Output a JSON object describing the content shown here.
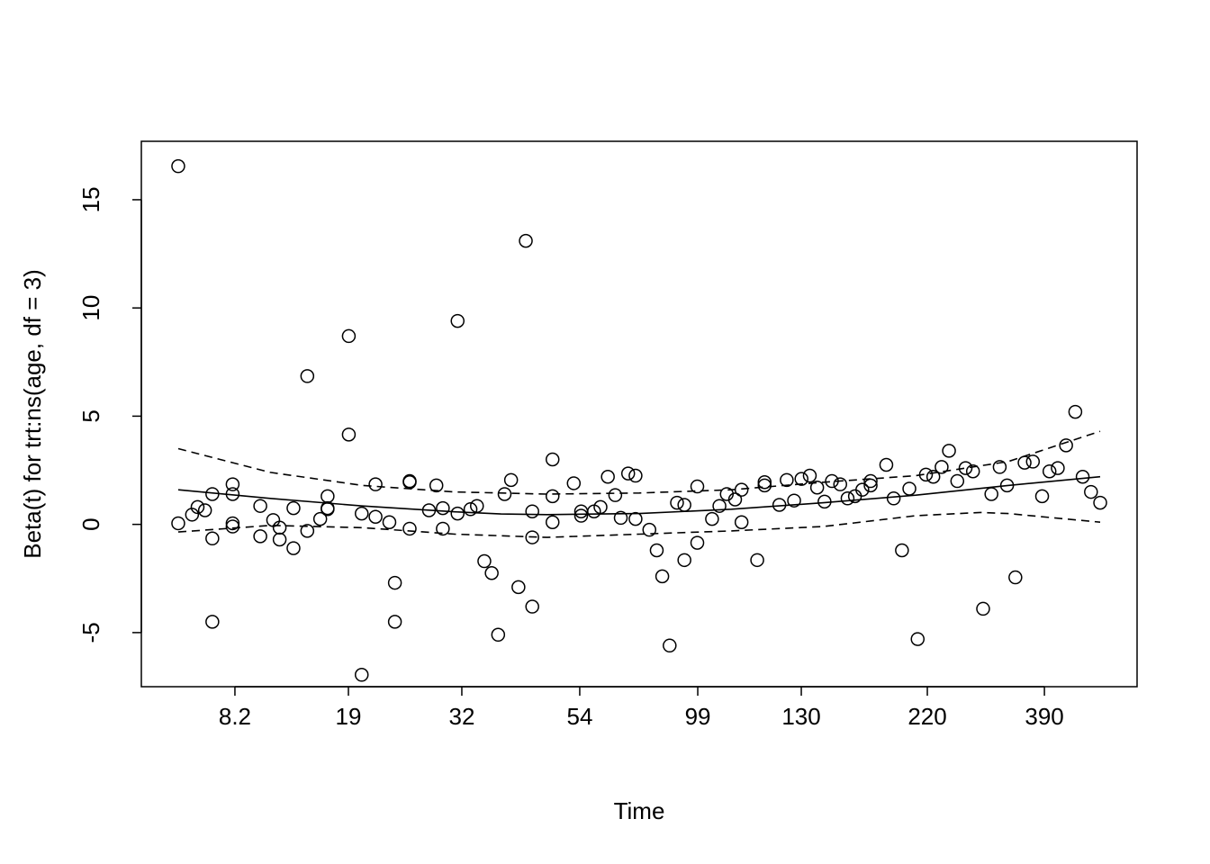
{
  "chart_data": {
    "type": "scatter",
    "title": "",
    "xlabel": "Time",
    "ylabel": "Beta(t) for trt:ns(age, df = 3)",
    "x_scale_note": "transformed time (KM scale)",
    "xlim": [
      -0.04,
      1.04
    ],
    "ylim": [
      -7.5,
      17.7
    ],
    "x_ticks": [
      {
        "pos": 0.0615,
        "label": "8.2"
      },
      {
        "pos": 0.1846,
        "label": "19"
      },
      {
        "pos": 0.3076,
        "label": "32"
      },
      {
        "pos": 0.4355,
        "label": "54"
      },
      {
        "pos": 0.5635,
        "label": "99"
      },
      {
        "pos": 0.6758,
        "label": "130"
      },
      {
        "pos": 0.8125,
        "label": "220"
      },
      {
        "pos": 0.9395,
        "label": "390"
      }
    ],
    "y_ticks": [
      {
        "pos": -5,
        "label": "-5"
      },
      {
        "pos": 0,
        "label": "0"
      },
      {
        "pos": 5,
        "label": "5"
      },
      {
        "pos": 10,
        "label": "10"
      },
      {
        "pos": 15,
        "label": "15"
      }
    ],
    "points": [
      [
        0,
        16.55
      ],
      [
        0,
        0.05
      ],
      [
        0.015,
        0.45
      ],
      [
        0.021,
        0.8
      ],
      [
        0.029,
        0.65
      ],
      [
        0.037,
        1.4
      ],
      [
        0.037,
        -0.65
      ],
      [
        0.037,
        -4.5
      ],
      [
        0.059,
        1.85
      ],
      [
        0.059,
        1.4
      ],
      [
        0.059,
        0.05
      ],
      [
        0.059,
        -0.1
      ],
      [
        0.089,
        0.85
      ],
      [
        0.089,
        -0.55
      ],
      [
        0.103,
        0.2
      ],
      [
        0.11,
        -0.15
      ],
      [
        0.11,
        -0.7
      ],
      [
        0.125,
        0.75
      ],
      [
        0.125,
        -1.1
      ],
      [
        0.14,
        6.85
      ],
      [
        0.14,
        -0.3
      ],
      [
        0.154,
        0.25
      ],
      [
        0.162,
        1.3
      ],
      [
        0.162,
        0.75
      ],
      [
        0.162,
        0.7
      ],
      [
        0.185,
        8.7
      ],
      [
        0.185,
        4.15
      ],
      [
        0.199,
        0.5
      ],
      [
        0.199,
        -6.95
      ],
      [
        0.214,
        1.85
      ],
      [
        0.214,
        0.35
      ],
      [
        0.229,
        0.1
      ],
      [
        0.235,
        -2.7
      ],
      [
        0.235,
        -4.5
      ],
      [
        0.251,
        2.0
      ],
      [
        0.251,
        1.95
      ],
      [
        0.251,
        -0.2
      ],
      [
        0.272,
        0.65
      ],
      [
        0.28,
        1.8
      ],
      [
        0.287,
        0.75
      ],
      [
        0.287,
        -0.2
      ],
      [
        0.303,
        9.4
      ],
      [
        0.303,
        0.5
      ],
      [
        0.317,
        0.7
      ],
      [
        0.324,
        0.85
      ],
      [
        0.332,
        -1.7
      ],
      [
        0.34,
        -2.25
      ],
      [
        0.347,
        -5.1
      ],
      [
        0.354,
        1.4
      ],
      [
        0.361,
        2.05
      ],
      [
        0.369,
        -2.9
      ],
      [
        0.377,
        13.1
      ],
      [
        0.384,
        0.6
      ],
      [
        0.384,
        -0.6
      ],
      [
        0.384,
        -3.8
      ],
      [
        0.406,
        3.0
      ],
      [
        0.406,
        1.3
      ],
      [
        0.406,
        0.1
      ],
      [
        0.429,
        1.9
      ],
      [
        0.437,
        0.6
      ],
      [
        0.437,
        0.4
      ],
      [
        0.451,
        0.6
      ],
      [
        0.458,
        0.8
      ],
      [
        0.466,
        2.2
      ],
      [
        0.474,
        1.35
      ],
      [
        0.48,
        0.3
      ],
      [
        0.488,
        2.35
      ],
      [
        0.496,
        2.25
      ],
      [
        0.496,
        0.25
      ],
      [
        0.511,
        -0.25
      ],
      [
        0.519,
        -1.2
      ],
      [
        0.525,
        -2.4
      ],
      [
        0.533,
        -5.6
      ],
      [
        0.541,
        1.0
      ],
      [
        0.549,
        0.9
      ],
      [
        0.549,
        -1.65
      ],
      [
        0.563,
        1.75
      ],
      [
        0.563,
        -0.85
      ],
      [
        0.579,
        0.25
      ],
      [
        0.587,
        0.85
      ],
      [
        0.595,
        1.4
      ],
      [
        0.604,
        1.15
      ],
      [
        0.611,
        1.6
      ],
      [
        0.611,
        0.1
      ],
      [
        0.628,
        -1.65
      ],
      [
        0.636,
        1.95
      ],
      [
        0.636,
        1.8
      ],
      [
        0.652,
        0.9
      ],
      [
        0.66,
        2.05
      ],
      [
        0.668,
        1.1
      ],
      [
        0.676,
        2.1
      ],
      [
        0.685,
        2.25
      ],
      [
        0.693,
        1.7
      ],
      [
        0.701,
        1.05
      ],
      [
        0.709,
        2.0
      ],
      [
        0.718,
        1.85
      ],
      [
        0.726,
        1.2
      ],
      [
        0.734,
        1.3
      ],
      [
        0.742,
        1.6
      ],
      [
        0.751,
        2.0
      ],
      [
        0.751,
        1.8
      ],
      [
        0.768,
        2.75
      ],
      [
        0.776,
        1.2
      ],
      [
        0.785,
        -1.2
      ],
      [
        0.793,
        1.65
      ],
      [
        0.802,
        -5.3
      ],
      [
        0.811,
        2.3
      ],
      [
        0.819,
        2.2
      ],
      [
        0.828,
        2.65
      ],
      [
        0.836,
        3.4
      ],
      [
        0.845,
        2.0
      ],
      [
        0.854,
        2.6
      ],
      [
        0.862,
        2.45
      ],
      [
        0.873,
        -3.9
      ],
      [
        0.882,
        1.4
      ],
      [
        0.891,
        2.65
      ],
      [
        0.899,
        1.8
      ],
      [
        0.908,
        -2.45
      ],
      [
        0.918,
        2.85
      ],
      [
        0.927,
        2.9
      ],
      [
        0.937,
        1.3
      ],
      [
        0.945,
        2.45
      ],
      [
        0.954,
        2.6
      ],
      [
        0.963,
        3.65
      ],
      [
        0.973,
        5.2
      ],
      [
        0.981,
        2.2
      ],
      [
        0.99,
        1.5
      ],
      [
        1.0,
        1.0
      ]
    ],
    "series": [
      {
        "name": "fit",
        "style": "solid",
        "x": [
          0,
          0.1,
          0.2,
          0.3,
          0.35,
          0.4,
          0.5,
          0.6,
          0.7,
          0.8,
          0.9,
          1.0
        ],
        "y": [
          1.6,
          1.2,
          0.85,
          0.58,
          0.48,
          0.45,
          0.5,
          0.7,
          1.0,
          1.35,
          1.8,
          2.2
        ]
      },
      {
        "name": "upper",
        "style": "dashed",
        "x": [
          0,
          0.1,
          0.2,
          0.3,
          0.4,
          0.5,
          0.6,
          0.7,
          0.8,
          0.9,
          1.0
        ],
        "y": [
          3.5,
          2.4,
          1.8,
          1.5,
          1.4,
          1.45,
          1.6,
          1.95,
          2.25,
          2.9,
          4.3
        ]
      },
      {
        "name": "lower",
        "style": "dashed",
        "x": [
          0,
          0.1,
          0.2,
          0.3,
          0.4,
          0.5,
          0.6,
          0.7,
          0.8,
          0.87,
          0.9,
          1.0
        ],
        "y": [
          -0.35,
          -0.05,
          -0.15,
          -0.45,
          -0.6,
          -0.45,
          -0.3,
          -0.1,
          0.4,
          0.55,
          0.5,
          0.1
        ]
      }
    ],
    "grid": false,
    "legend": "none"
  }
}
